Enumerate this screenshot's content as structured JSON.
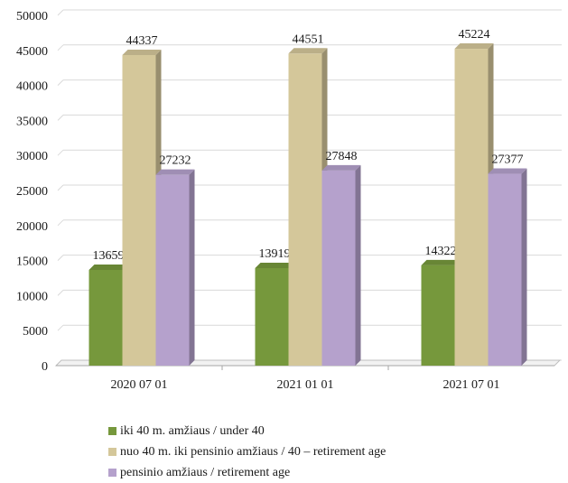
{
  "chart_data": {
    "type": "bar",
    "categories": [
      "2020 07 01",
      "2021 01 01",
      "2021 07 01"
    ],
    "series": [
      {
        "name": "iki 40 m. amžiaus / under 40",
        "values": [
          13659,
          13919,
          14322
        ],
        "color": "#76983c"
      },
      {
        "name": "nuo 40 m. iki pensinio amžiaus / 40 – retirement age",
        "values": [
          44337,
          44551,
          45224
        ],
        "color": "#d4c79a"
      },
      {
        "name": "pensinio amžiaus / retirement age",
        "values": [
          27232,
          27848,
          27377
        ],
        "color": "#b5a1cc"
      }
    ],
    "yticks": [
      "0",
      "5000",
      "10000",
      "15000",
      "20000",
      "25000",
      "30000",
      "35000",
      "40000",
      "45000",
      "50000"
    ],
    "ylim": [
      0,
      50000
    ],
    "grid": true,
    "legend_position": "bottom",
    "style": "3d-bar"
  }
}
